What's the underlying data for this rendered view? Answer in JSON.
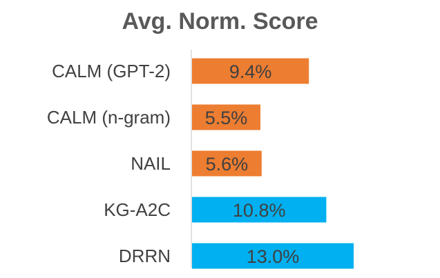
{
  "chart_data": {
    "type": "bar",
    "orientation": "horizontal",
    "title": "Avg. Norm. Score",
    "xlabel": "",
    "ylabel": "",
    "xlim": [
      0,
      15
    ],
    "grid": false,
    "legend": "none",
    "categories": [
      "CALM (GPT-2)",
      "CALM (n-gram)",
      "NAIL",
      "KG-A2C",
      "DRRN"
    ],
    "values": [
      9.4,
      5.5,
      5.6,
      10.8,
      13.0
    ],
    "data_labels": [
      "9.4%",
      "5.5%",
      "5.6%",
      "10.8%",
      "13.0%"
    ],
    "colors": [
      "#ED7D31",
      "#ED7D31",
      "#ED7D31",
      "#00B0F0",
      "#00B0F0"
    ],
    "axis_color": "#D9D9D9",
    "label_color": "#404040",
    "title_color": "#595959"
  }
}
